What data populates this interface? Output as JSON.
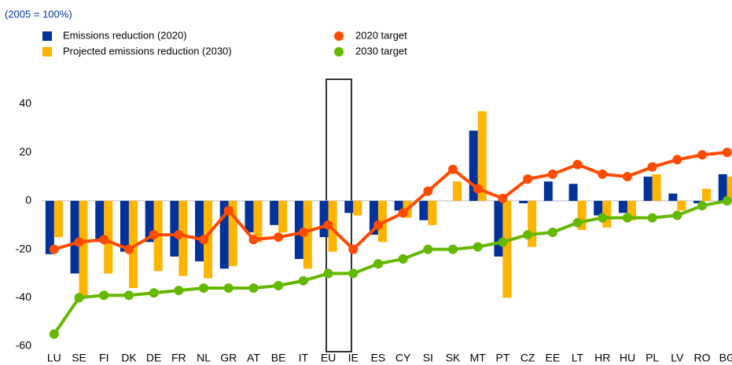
{
  "chart_data": {
    "type": "bar_line",
    "subtitle": "(2005 = 100%)",
    "categories": [
      "LU",
      "SE",
      "FI",
      "DK",
      "DE",
      "FR",
      "NL",
      "GR",
      "AT",
      "BE",
      "IT",
      "EU",
      "IE",
      "ES",
      "CY",
      "SI",
      "SK",
      "MT",
      "PT",
      "CZ",
      "EE",
      "LT",
      "HR",
      "HU",
      "PL",
      "LV",
      "RO",
      "BG"
    ],
    "series": [
      {
        "name": "Emissions reduction (2020)",
        "kind": "bar",
        "color": "#003299",
        "values": [
          -22,
          -30,
          -17,
          -21,
          -17,
          -23,
          -25,
          -28,
          -13,
          -10,
          -24,
          -15,
          -5,
          -14,
          -4,
          -8,
          0,
          29,
          -23,
          -1,
          8,
          7,
          -6,
          -5,
          10,
          3,
          -1,
          11
        ]
      },
      {
        "name": "Projected emissions reduction (2030)",
        "kind": "bar",
        "color": "#ffb400",
        "values": [
          -15,
          -40,
          -30,
          -36,
          -29,
          -31,
          -32,
          -27,
          -17,
          -13,
          -28,
          -21,
          -6,
          -17,
          -7,
          -10,
          8,
          37,
          -40,
          -19,
          0,
          -12,
          -11,
          -8,
          11,
          -4,
          5,
          10
        ]
      },
      {
        "name": "2020 target",
        "kind": "line",
        "color": "#ff4b00",
        "values": [
          -20,
          -17,
          -16,
          -20,
          -14,
          -14,
          -16,
          -4,
          -16,
          -15,
          -13,
          -10,
          -20,
          -10,
          -5,
          4,
          13,
          5,
          1,
          9,
          11,
          15,
          11,
          10,
          14,
          17,
          19,
          20
        ]
      },
      {
        "name": "2030 target",
        "kind": "line",
        "color": "#65b800",
        "values": [
          -55,
          -40,
          -39,
          -39,
          -38,
          -37,
          -36,
          -36,
          -36,
          -35,
          -33,
          -30,
          -30,
          -26,
          -24,
          -20,
          -20,
          -19,
          -17,
          -14,
          -13,
          -9,
          -7,
          -7,
          -7,
          -6,
          -2,
          0
        ]
      }
    ],
    "ylim": [
      -60,
      50
    ],
    "yticks": [
      -60,
      -40,
      -20,
      0,
      20,
      40
    ],
    "grid": false
  }
}
